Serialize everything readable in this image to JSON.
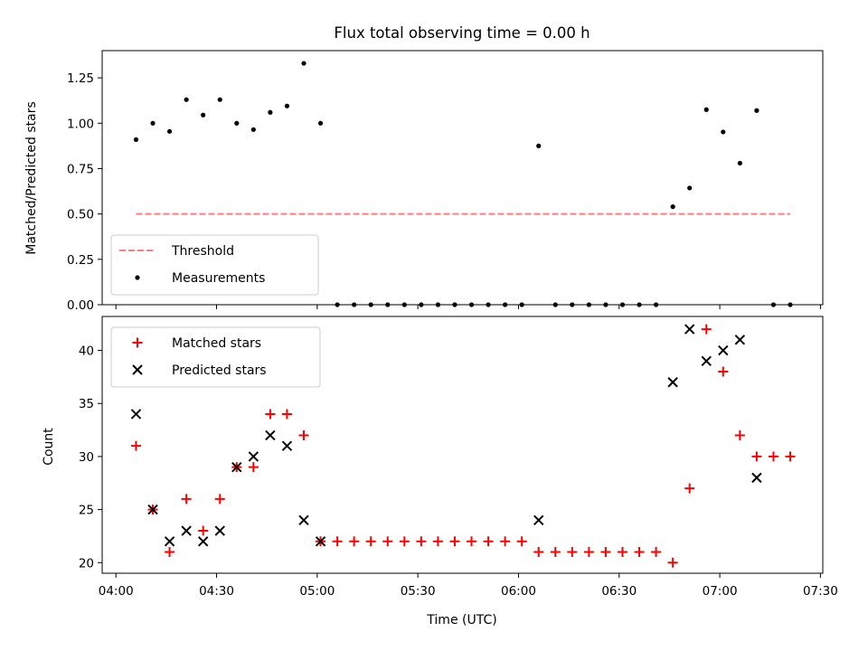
{
  "chart_data": [
    {
      "type": "scatter",
      "title": "Flux total observing time = 0.00 h",
      "xlabel": "",
      "ylabel": "Matched/Predicted stars",
      "xlim": [
        "04:00",
        "07:30"
      ],
      "ylim": [
        0,
        1.4
      ],
      "yticks": [
        "0.00",
        "0.25",
        "0.50",
        "0.75",
        "1.00",
        "1.25"
      ],
      "legend_position": "lower-left",
      "series": [
        {
          "name": "Threshold",
          "kind": "dashed-line",
          "color": "#ff7f7f",
          "x": [
            "04:06",
            "07:21"
          ],
          "y": [
            0.5,
            0.5
          ]
        },
        {
          "name": "Measurements",
          "kind": "dot",
          "color": "#000000",
          "x": [
            "04:06",
            "04:11",
            "04:16",
            "04:21",
            "04:26",
            "04:31",
            "04:36",
            "04:41",
            "04:46",
            "04:51",
            "04:56",
            "05:01",
            "05:06",
            "05:11",
            "05:16",
            "05:21",
            "05:26",
            "05:31",
            "05:36",
            "05:41",
            "05:46",
            "05:51",
            "05:56",
            "06:01",
            "06:06",
            "06:11",
            "06:16",
            "06:21",
            "06:26",
            "06:31",
            "06:36",
            "06:41",
            "06:46",
            "06:51",
            "06:56",
            "07:01",
            "07:06",
            "07:11",
            "07:16",
            "07:21"
          ],
          "y": [
            0.91,
            1.0,
            0.955,
            1.13,
            1.045,
            1.13,
            1.0,
            0.965,
            1.06,
            1.095,
            1.33,
            1.0,
            0,
            0,
            0,
            0,
            0,
            0,
            0,
            0,
            0,
            0,
            0,
            0,
            0.875,
            0,
            0,
            0,
            0,
            0,
            0,
            0,
            0.54,
            0.643,
            1.075,
            0.952,
            0.78,
            1.07,
            0,
            0
          ]
        }
      ]
    },
    {
      "type": "scatter",
      "title": "",
      "xlabel": "Time (UTC)",
      "ylabel": "Count",
      "xlim": [
        "04:00",
        "07:30"
      ],
      "ylim": [
        19,
        43.2
      ],
      "xticks": [
        "04:00",
        "04:30",
        "05:00",
        "05:30",
        "06:00",
        "06:30",
        "07:00",
        "07:30"
      ],
      "yticks": [
        "20",
        "25",
        "30",
        "35",
        "40"
      ],
      "legend_position": "upper-left",
      "series": [
        {
          "name": "Matched stars",
          "kind": "plus",
          "color": "#ff0000",
          "x": [
            "04:06",
            "04:11",
            "04:16",
            "04:21",
            "04:26",
            "04:31",
            "04:36",
            "04:41",
            "04:46",
            "04:51",
            "04:56",
            "05:01",
            "05:06",
            "05:11",
            "05:16",
            "05:21",
            "05:26",
            "05:31",
            "05:36",
            "05:41",
            "05:46",
            "05:51",
            "05:56",
            "06:01",
            "06:06",
            "06:11",
            "06:16",
            "06:21",
            "06:26",
            "06:31",
            "06:36",
            "06:41",
            "06:46",
            "06:51",
            "06:56",
            "07:01",
            "07:06",
            "07:11",
            "07:16",
            "07:21"
          ],
          "y": [
            31,
            25,
            21,
            26,
            23,
            26,
            29,
            29,
            34,
            34,
            32,
            22,
            22,
            22,
            22,
            22,
            22,
            22,
            22,
            22,
            22,
            22,
            22,
            22,
            21,
            21,
            21,
            21,
            21,
            21,
            21,
            21,
            20,
            27,
            42,
            38,
            32,
            30,
            30,
            30
          ]
        },
        {
          "name": "Predicted stars",
          "kind": "x",
          "color": "#000000",
          "x": [
            "04:06",
            "04:11",
            "04:16",
            "04:21",
            "04:26",
            "04:31",
            "04:36",
            "04:41",
            "04:46",
            "04:51",
            "04:56",
            "05:01",
            "06:06",
            "06:46",
            "06:51",
            "06:56",
            "07:01",
            "07:06",
            "07:11"
          ],
          "y": [
            34,
            25,
            22,
            23,
            22,
            23,
            29,
            30,
            32,
            31,
            24,
            22,
            24,
            37,
            42,
            39,
            40,
            41,
            28
          ]
        }
      ]
    }
  ]
}
